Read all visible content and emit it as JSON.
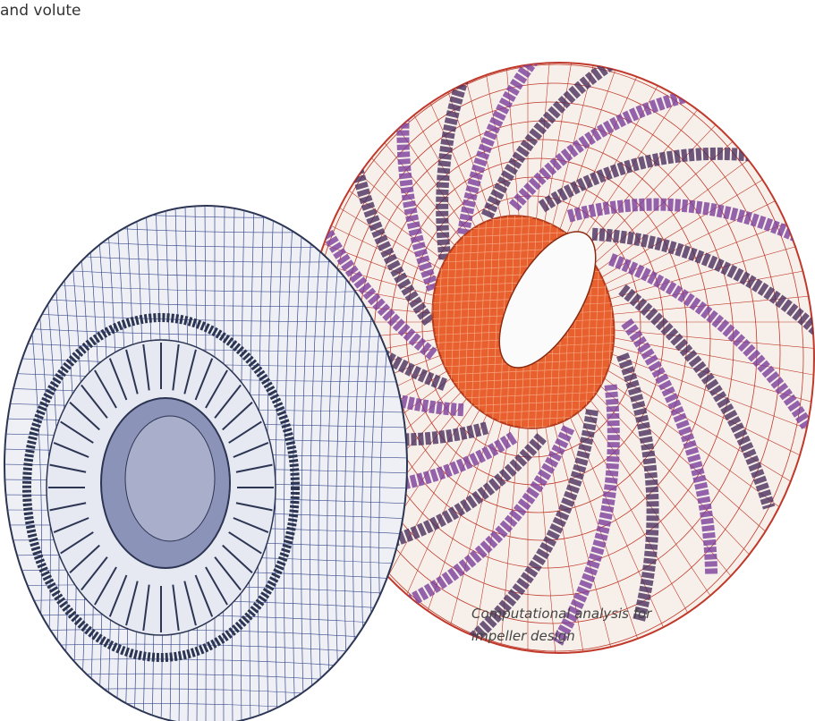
{
  "header": {
    "text": "and volute"
  },
  "caption": {
    "lines": [
      "Computational analysis for",
      "impeller design"
    ]
  }
}
